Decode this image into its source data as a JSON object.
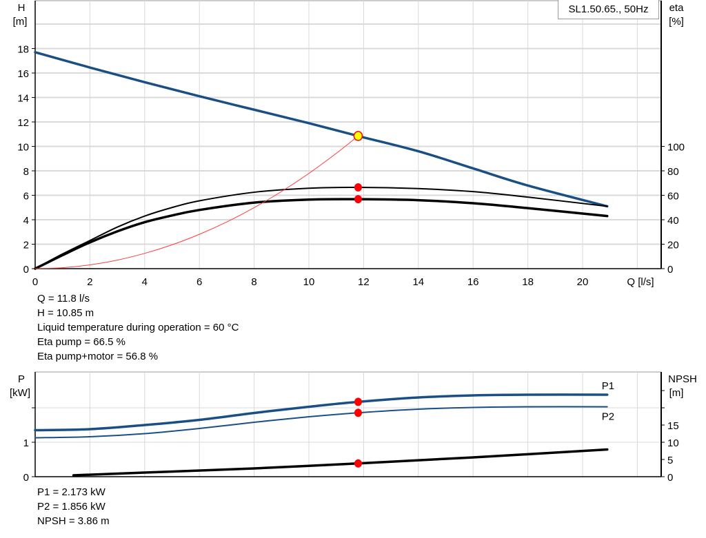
{
  "legend_title": "SL1.50.65., 50Hz",
  "colors": {
    "head": "#1a4f86",
    "power": "#1a4f86",
    "efficiency": "#000000",
    "npsh": "#000000",
    "system": "#ff3b3b",
    "duty_point": "#ff0000",
    "duty_point_fill": "#ffff00",
    "grid": "#d9d9d9"
  },
  "chart_data": [
    {
      "type": "line",
      "x_axis": {
        "label": "Q [l/s]",
        "range": [
          0,
          22
        ],
        "ticks": [
          0,
          2,
          4,
          6,
          8,
          10,
          12,
          14,
          16,
          18,
          20
        ]
      },
      "y_axis_left": {
        "label_top": "H",
        "label_unit": "[m]",
        "range": [
          0,
          20
        ],
        "ticks": [
          0,
          2,
          4,
          6,
          8,
          10,
          12,
          14,
          16,
          18
        ]
      },
      "y_axis_right": {
        "label_top": "eta",
        "label_unit": "[%]",
        "range": [
          0,
          200
        ],
        "ticks": [
          0,
          20,
          40,
          60,
          80,
          100
        ]
      },
      "grid": true,
      "series": [
        {
          "id": "head",
          "axis": "left",
          "width": 3.5,
          "x": [
            0,
            2,
            4,
            6,
            8,
            10,
            11.8,
            14,
            16,
            18,
            20.9
          ],
          "y": [
            17.7,
            16.45,
            15.25,
            14.1,
            13.0,
            11.9,
            10.85,
            9.6,
            8.2,
            6.8,
            5.1
          ]
        },
        {
          "id": "eta-pump",
          "axis": "right",
          "width": 2,
          "x": [
            0,
            1,
            2,
            3,
            4,
            5,
            6,
            8,
            10,
            11.8,
            14,
            16,
            18,
            20.9
          ],
          "y": [
            0,
            12,
            23,
            34,
            43,
            50,
            55.5,
            62.5,
            65.8,
            66.5,
            65.5,
            63,
            58.5,
            51
          ]
        },
        {
          "id": "eta-pump-motor",
          "axis": "right",
          "width": 3.5,
          "x": [
            0,
            1,
            2,
            3,
            4,
            5,
            6,
            8,
            10,
            11.8,
            14,
            16,
            18,
            20.9
          ],
          "y": [
            0,
            11,
            21.5,
            30.5,
            38,
            43.5,
            48,
            54,
            56.5,
            56.8,
            56,
            53.5,
            49.5,
            43
          ]
        },
        {
          "id": "system-curve",
          "axis": "left",
          "width": 1,
          "x": [
            0,
            1,
            2,
            3,
            4,
            5,
            6,
            7,
            8,
            9,
            10,
            11,
            11.8
          ],
          "y": [
            0,
            0.078,
            0.31,
            0.7,
            1.25,
            1.95,
            2.81,
            3.82,
            4.99,
            6.31,
            7.79,
            9.43,
            10.85
          ]
        }
      ],
      "duty_points": [
        {
          "id": "duty-point-head",
          "x": 11.8,
          "y": 10.85,
          "axis": "left",
          "highlight": true
        },
        {
          "id": "duty-point-eta-pump",
          "x": 11.8,
          "y": 66.5,
          "axis": "right"
        },
        {
          "id": "duty-point-eta-pump-motor",
          "x": 11.8,
          "y": 56.8,
          "axis": "right"
        }
      ]
    },
    {
      "type": "line",
      "x_axis": {
        "range": [
          0,
          22
        ]
      },
      "y_axis_left": {
        "label_top": "P",
        "label_unit": "[kW]",
        "range": [
          0,
          3
        ],
        "ticks": [
          0,
          1
        ],
        "unlabeled_ticks": [
          2
        ]
      },
      "y_axis_right": {
        "label_top": "NPSH",
        "label_unit": "[m]",
        "range": [
          0,
          30
        ],
        "ticks": [
          0,
          5,
          10,
          15
        ],
        "unlabeled_ticks": [
          20,
          25
        ]
      },
      "grid": true,
      "series": [
        {
          "id": "P1",
          "name": "P1",
          "axis": "left",
          "width": 3.5,
          "x": [
            0,
            2,
            4,
            6,
            8,
            10,
            11.8,
            14,
            16,
            18,
            20.9
          ],
          "y": [
            1.35,
            1.38,
            1.5,
            1.65,
            1.85,
            2.03,
            2.173,
            2.3,
            2.36,
            2.38,
            2.38
          ]
        },
        {
          "id": "P2",
          "name": "P2",
          "axis": "left",
          "width": 2,
          "x": [
            0,
            2,
            4,
            6,
            8,
            10,
            11.8,
            14,
            16,
            18,
            20.9
          ],
          "y": [
            1.13,
            1.16,
            1.25,
            1.4,
            1.58,
            1.74,
            1.856,
            1.96,
            2.01,
            2.03,
            2.03
          ]
        },
        {
          "id": "NPSH",
          "axis": "right",
          "width": 3.5,
          "x": [
            1.4,
            4,
            8,
            11.8,
            16,
            20.9
          ],
          "y": [
            0.4,
            1.2,
            2.4,
            3.86,
            5.6,
            7.9
          ]
        }
      ],
      "duty_points": [
        {
          "id": "duty-point-p1",
          "x": 11.8,
          "y": 2.173,
          "axis": "left"
        },
        {
          "id": "duty-point-p2",
          "x": 11.8,
          "y": 1.856,
          "axis": "left"
        },
        {
          "id": "duty-point-npsh",
          "x": 11.8,
          "y": 3.86,
          "axis": "right"
        }
      ]
    }
  ],
  "info_top": [
    "Q = 11.8 l/s",
    "H = 10.85 m",
    "Liquid temperature during operation = 60 °C",
    "Eta pump = 66.5 %",
    "Eta pump+motor = 56.8 %"
  ],
  "info_bottom": [
    "P1 = 2.173 kW",
    "P2 = 1.856 kW",
    "NPSH = 3.86 m"
  ]
}
